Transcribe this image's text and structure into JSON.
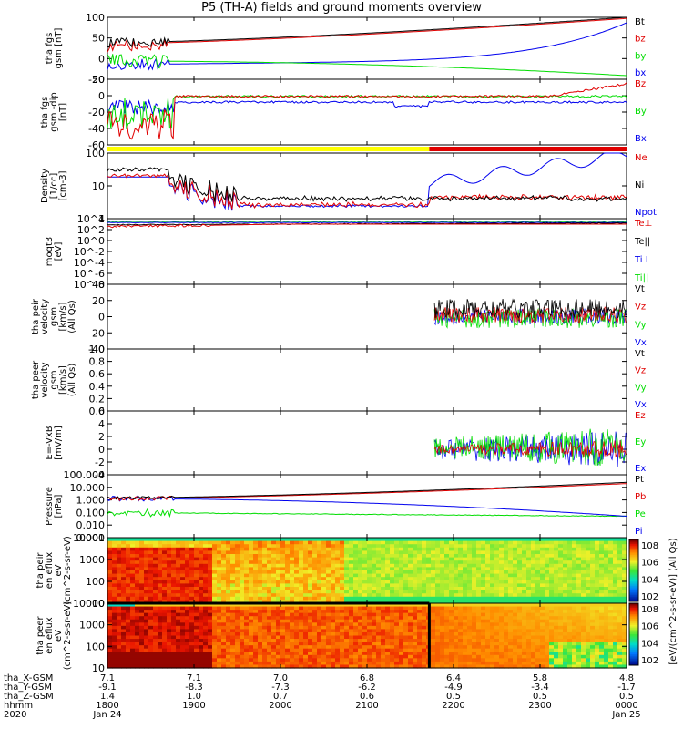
{
  "title": "P5 (TH-A) fields and ground moments overview",
  "colors": {
    "black": "#000000",
    "red": "#e00000",
    "green": "#00dd00",
    "blue": "#0000ee",
    "yellow": "#ffff00"
  },
  "footer": {
    "rows": [
      {
        "label": "tha_X-GSM",
        "values": [
          "7.1",
          "7.1",
          "7.0",
          "6.8",
          "6.4",
          "5.8",
          "4.8"
        ]
      },
      {
        "label": "tha_Y-GSM",
        "values": [
          "-9.1",
          "-8.3",
          "-7.3",
          "-6.2",
          "-4.9",
          "-3.4",
          "-1.7"
        ]
      },
      {
        "label": "tha_Z-GSM",
        "values": [
          "1.4",
          "1.0",
          "0.7",
          "0.6",
          "0.5",
          "0.5",
          "0.5"
        ]
      },
      {
        "label": "hhmm",
        "values": [
          "1800",
          "1900",
          "2000",
          "2100",
          "2200",
          "2300",
          "0000"
        ]
      },
      {
        "label": "2020",
        "values": [
          "Jan 24",
          "",
          "",
          "",
          "",
          "",
          "Jan 25"
        ]
      }
    ]
  },
  "colorbar": {
    "label": "[eV/(cm^2-s-sr-eV)] (All Qs)",
    "ticks1": [
      "10^8",
      "10^6",
      "10^4",
      "10^2"
    ],
    "ticks2": [
      "10^8",
      "10^6",
      "10^4",
      "10^2"
    ]
  },
  "chart_data": [
    {
      "type": "line",
      "ylabel": "tha fgs gsm [nT]",
      "yticks": [
        "100",
        "50",
        "0",
        "-50"
      ],
      "ylim": [
        -70,
        100
      ],
      "series": [
        {
          "name": "Bt",
          "color": "#000000"
        },
        {
          "name": "bz",
          "color": "#e00000"
        },
        {
          "name": "by",
          "color": "#00dd00"
        },
        {
          "name": "bx",
          "color": "#0000ee"
        }
      ]
    },
    {
      "type": "line",
      "ylabel": "tha fgs gsm -dip [nT]",
      "yticks": [
        "20",
        "0",
        "-20",
        "-40",
        "-60"
      ],
      "ylim": [
        -68,
        24
      ],
      "series": [
        {
          "name": "Bz",
          "color": "#e00000"
        },
        {
          "name": "By",
          "color": "#00dd00"
        },
        {
          "name": "Bx",
          "color": "#0000ee"
        }
      ]
    },
    {
      "type": "bar",
      "ylabel": "",
      "note": "mode bar: yellow 1800-2130, red 2130-0000"
    },
    {
      "type": "line",
      "ylabel": "Density [1/cc] [cm-3]",
      "yticks": [
        "100",
        "10",
        "1"
      ],
      "log": true,
      "series": [
        {
          "name": "Ne",
          "color": "#e00000"
        },
        {
          "name": "Ni",
          "color": "#000000"
        },
        {
          "name": "Npot",
          "color": "#0000ee"
        }
      ]
    },
    {
      "type": "line",
      "ylabel": "moqt3 [eV]",
      "yticks": [
        "10^4",
        "10^2",
        "10^0",
        "10^-2",
        "10^-4",
        "10^-6",
        "10^-8"
      ],
      "log": true,
      "series": [
        {
          "name": "Te⊥",
          "color": "#e00000"
        },
        {
          "name": "Te||",
          "color": "#000000"
        },
        {
          "name": "Ti⊥",
          "color": "#0000ee"
        },
        {
          "name": "Ti||",
          "color": "#00dd00"
        }
      ]
    },
    {
      "type": "line",
      "ylabel": "tha peir velocity gsm [km/s] (All Qs)",
      "yticks": [
        "40",
        "20",
        "0",
        "-20",
        "-40"
      ],
      "ylim": [
        -40,
        40
      ],
      "series": [
        {
          "name": "Vt",
          "color": "#000000"
        },
        {
          "name": "Vz",
          "color": "#e00000"
        },
        {
          "name": "Vy",
          "color": "#00dd00"
        },
        {
          "name": "Vx",
          "color": "#0000ee"
        }
      ]
    },
    {
      "type": "line",
      "ylabel": "tha peer velocity gsm [km/s] (All Qs)",
      "yticks": [
        "1.0",
        "0.8",
        "0.6",
        "0.4",
        "0.2",
        "0.0"
      ],
      "ylim": [
        0,
        1
      ],
      "series": [
        {
          "name": "Vt",
          "color": "#000000"
        },
        {
          "name": "Vz",
          "color": "#e00000"
        },
        {
          "name": "Vy",
          "color": "#00dd00"
        },
        {
          "name": "Vx",
          "color": "#0000ee"
        }
      ]
    },
    {
      "type": "line",
      "ylabel": "E=-VxB [mV/m]",
      "yticks": [
        "6",
        "4",
        "2",
        "0",
        "-2",
        "-4"
      ],
      "ylim": [
        -4,
        6
      ],
      "series": [
        {
          "name": "Ez",
          "color": "#e00000"
        },
        {
          "name": "Ey",
          "color": "#00dd00"
        },
        {
          "name": "Ex",
          "color": "#0000ee"
        }
      ]
    },
    {
      "type": "line",
      "ylabel": "Pressure [nPa]",
      "yticks": [
        "100.000",
        "10.000",
        "1.000",
        "0.100",
        "0.010",
        "0.001"
      ],
      "log": true,
      "series": [
        {
          "name": "Pt",
          "color": "#000000"
        },
        {
          "name": "Pb",
          "color": "#e00000"
        },
        {
          "name": "Pe",
          "color": "#00dd00"
        },
        {
          "name": "Pi",
          "color": "#0000ee"
        }
      ]
    },
    {
      "type": "heatmap",
      "ylabel": "tha peir en eflux eV (cm^2-s-sr-eV)",
      "yticks": [
        "10000",
        "1000",
        "100",
        "10"
      ]
    },
    {
      "type": "heatmap",
      "ylabel": "tha peer en eflux eV (cm^2-s-sr-eV)",
      "yticks": [
        "10000",
        "1000",
        "100",
        "10"
      ]
    }
  ]
}
